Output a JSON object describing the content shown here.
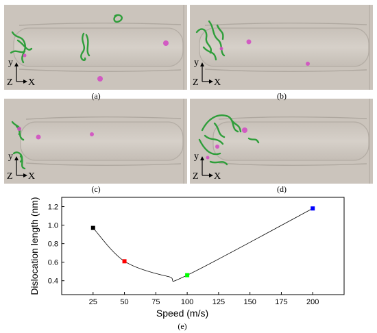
{
  "panels": [
    {
      "label": "(a)"
    },
    {
      "label": "(b)"
    },
    {
      "label": "(c)"
    },
    {
      "label": "(d)"
    }
  ],
  "triad": {
    "y": "y",
    "z": "Z",
    "x": "X"
  },
  "colors": {
    "surface": "#cbc4bc",
    "dislocation": "#2e9e3a",
    "defect": "#d24fc2"
  },
  "chart_data": {
    "type": "scatter",
    "caption": "(e)",
    "xlabel": "Speed (m/s)",
    "ylabel": "Dislocation length (nm)",
    "xlim": [
      0,
      225
    ],
    "ylim": [
      0.25,
      1.3
    ],
    "xticks": [
      25,
      50,
      75,
      100,
      125,
      150,
      175,
      200
    ],
    "yticks": [
      0.4,
      0.6,
      0.8,
      1.0,
      1.2
    ],
    "points": [
      {
        "x": 25,
        "y": 0.97,
        "color": "#000000"
      },
      {
        "x": 50,
        "y": 0.61,
        "color": "#ff0000"
      },
      {
        "x": 100,
        "y": 0.46,
        "color": "#00ff00"
      },
      {
        "x": 200,
        "y": 1.18,
        "color": "#0000ff"
      }
    ],
    "fit_line": true
  }
}
